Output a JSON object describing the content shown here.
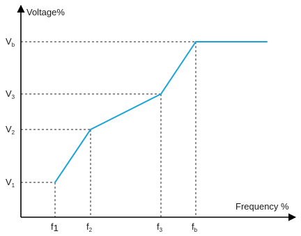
{
  "chart_data": {
    "type": "line",
    "xlabel": "Frequency %",
    "ylabel": "Voltage%",
    "x_ticks": [
      {
        "id": "f1",
        "main": "f",
        "sub": "1",
        "sub_large": true
      },
      {
        "id": "f2",
        "main": "f",
        "sub": "2"
      },
      {
        "id": "f3",
        "main": "f",
        "sub": "3"
      },
      {
        "id": "fb",
        "main": "f",
        "sub": "b"
      }
    ],
    "y_ticks": [
      {
        "id": "V1",
        "main": "V",
        "sub": "1"
      },
      {
        "id": "V2",
        "main": "V",
        "sub": "2"
      },
      {
        "id": "V3",
        "main": "V",
        "sub": "3"
      },
      {
        "id": "Vb",
        "main": "V",
        "sub": "b"
      }
    ],
    "series": [
      {
        "color": "#1aa3d9",
        "points": [
          {
            "x": "f1",
            "y": "V1"
          },
          {
            "x": "f2",
            "y": "V2"
          },
          {
            "x": "f3",
            "y": "V3"
          },
          {
            "x": "fb",
            "y": "Vb"
          },
          {
            "x": "end",
            "y": "Vb"
          }
        ]
      }
    ],
    "grid": false,
    "guide_lines": "dashed"
  }
}
